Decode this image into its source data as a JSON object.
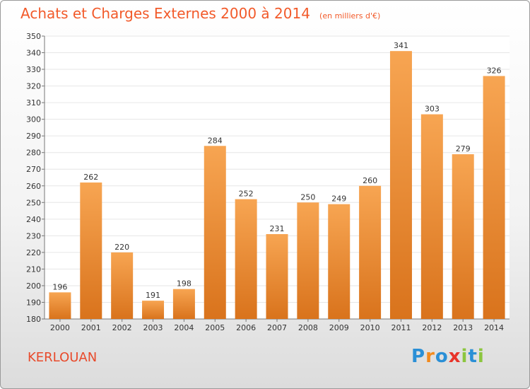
{
  "title": "Achats et Charges Externes 2000 à 2014",
  "unit_label": "(en milliers d'€)",
  "place": "KERLOUAN",
  "logo": {
    "text": "Proxiti",
    "letter_colors": [
      "#2a8fd6",
      "#f28a1e",
      "#2a8fd6",
      "#e8342a",
      "#8cc63f",
      "#2a8fd6",
      "#8cc63f"
    ]
  },
  "colors": {
    "bar_top": "#f7a552",
    "bar_bottom": "#d9731c",
    "grid": "#e6e6e6",
    "axis": "#777777",
    "text": "#333333"
  },
  "chart_data": {
    "type": "bar",
    "categories": [
      "2000",
      "2001",
      "2002",
      "2003",
      "2004",
      "2005",
      "2006",
      "2007",
      "2008",
      "2009",
      "2010",
      "2011",
      "2012",
      "2013",
      "2014"
    ],
    "values": [
      196,
      262,
      220,
      191,
      198,
      284,
      252,
      231,
      250,
      249,
      260,
      341,
      303,
      279,
      326
    ],
    "ylim": [
      180,
      350
    ],
    "ytick_step": 10,
    "grid": true,
    "data_labels": true
  }
}
